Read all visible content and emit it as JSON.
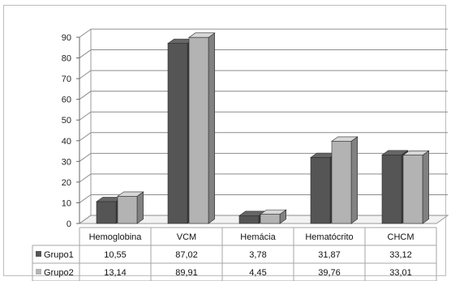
{
  "chart_data": {
    "type": "bar",
    "title": "",
    "xlabel": "",
    "ylabel": "",
    "categories": [
      "Hemoglobina",
      "VCM",
      "Hemácia",
      "Hematócrito",
      "CHCM"
    ],
    "series": [
      {
        "name": "Grupo1",
        "values": [
          10.55,
          87.02,
          3.78,
          31.87,
          33.12
        ],
        "labels": [
          "10,55",
          "87,02",
          "3,78",
          "31,87",
          "33,12"
        ]
      },
      {
        "name": "Grupo2",
        "values": [
          13.14,
          89.91,
          4.45,
          39.76,
          33.01
        ],
        "labels": [
          "13,14",
          "89,91",
          "4,45",
          "39,76",
          "33,01"
        ]
      }
    ],
    "ylim": [
      0,
      90
    ],
    "yticks": [
      0,
      10,
      20,
      30,
      40,
      50,
      60,
      70,
      80,
      90
    ],
    "grid": true,
    "legend": "data-table-left",
    "colors": {
      "Grupo1": "#555555",
      "Grupo2": "#b3b3b3"
    }
  }
}
